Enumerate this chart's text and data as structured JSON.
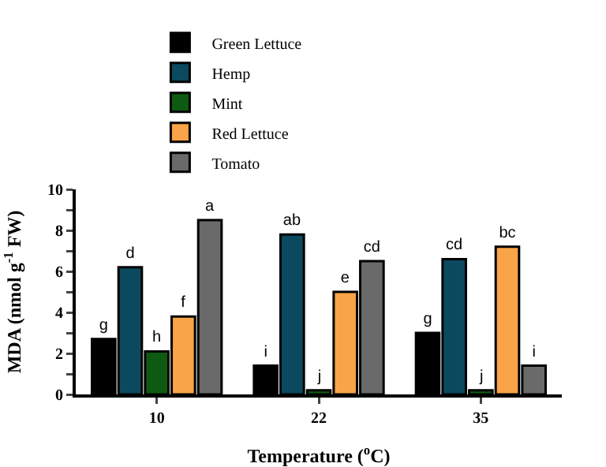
{
  "chart_data": {
    "type": "bar",
    "xlabel": "Temperature ($^{o}$C)",
    "ylabel": "MDA (nmol g$^{-1}$ FW)",
    "categories": [
      "10",
      "22",
      "35"
    ],
    "series": [
      {
        "name": "Green Lettuce",
        "color": "#000000",
        "values": [
          2.7,
          1.4,
          3.0
        ],
        "value_labels": [
          "g",
          "i",
          "g"
        ]
      },
      {
        "name": "Hemp",
        "color": "#0b4a5e",
        "values": [
          6.2,
          7.8,
          6.6
        ],
        "value_labels": [
          "d",
          "ab",
          "cd"
        ]
      },
      {
        "name": "Mint",
        "color": "#0f5a12",
        "values": [
          2.1,
          0.2,
          0.2
        ],
        "value_labels": [
          "h",
          "j",
          "j"
        ]
      },
      {
        "name": "Red Lettuce",
        "color": "#f9a448",
        "values": [
          3.8,
          5.0,
          7.2
        ],
        "value_labels": [
          "f",
          "e",
          "bc"
        ]
      },
      {
        "name": "Tomato",
        "color": "#6a6a6a",
        "values": [
          8.5,
          6.5,
          1.4
        ],
        "value_labels": [
          "a",
          "cd",
          "i"
        ]
      }
    ],
    "ylim": [
      0,
      10
    ],
    "yticks": [
      0,
      {
        "value": 1,
        "label": null
      },
      2,
      {
        "value": 3,
        "label": null
      },
      4,
      {
        "value": 5,
        "label": null
      },
      6,
      {
        "value": 7,
        "label": null
      },
      8,
      {
        "value": 9,
        "label": null
      },
      10
    ],
    "grid": false,
    "legend": "top"
  }
}
